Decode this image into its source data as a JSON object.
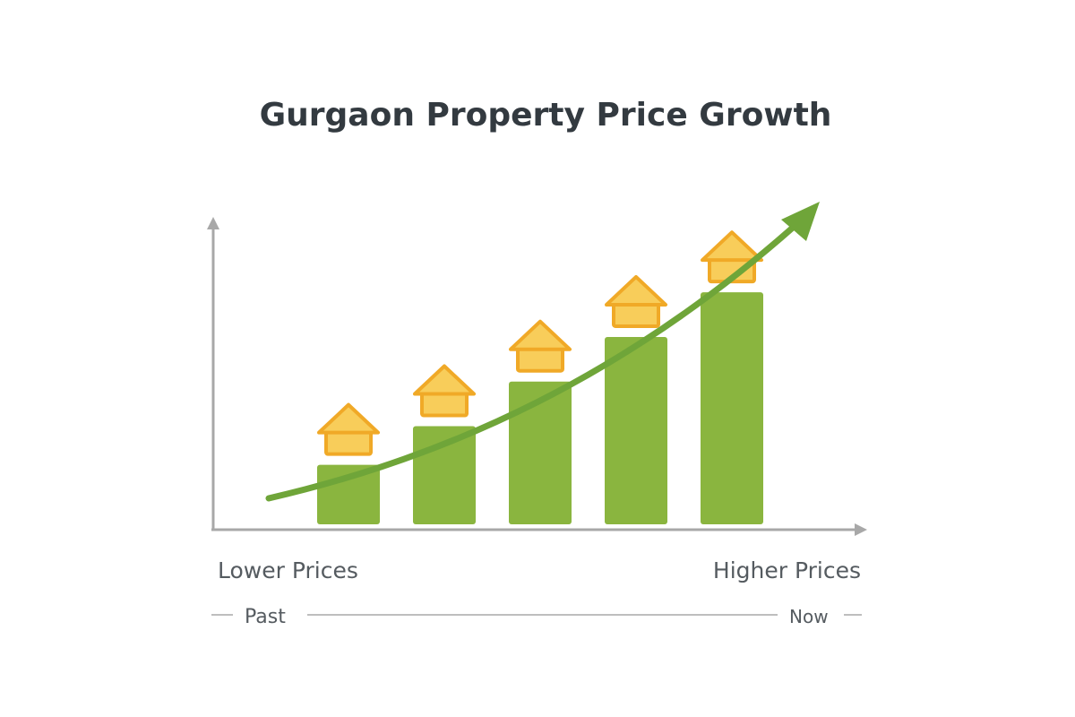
{
  "title": "Gurgaon Property Price Growth",
  "labels": {
    "lower": "Lower Prices",
    "higher": "Higher Prices",
    "past": "Past",
    "now": "Now"
  },
  "colors": {
    "bar": "#8ab53f",
    "trend": "#6fa539",
    "house_fill": "#f8cd5a",
    "house_stroke": "#f0a927",
    "axis": "#a8a8a8",
    "text": "#555b60"
  },
  "icons": {
    "bar_marker": "house-icon",
    "trend_head": "arrow-up-right-icon"
  },
  "chart_data": {
    "type": "bar",
    "categories": [
      "",
      "",
      "",
      "",
      ""
    ],
    "values": [
      1,
      1.65,
      2.4,
      3.15,
      3.9
    ],
    "ylim": [
      0,
      5.5
    ],
    "grid": false,
    "legend": "none",
    "trend_line": true,
    "xlabel": "",
    "ylabel": ""
  }
}
